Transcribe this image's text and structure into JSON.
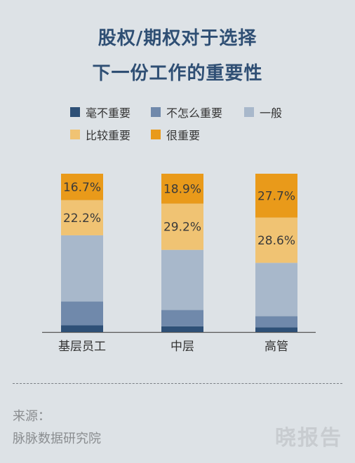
{
  "chart_data": {
    "type": "bar",
    "stacked": true,
    "title_line1": "股权/期权对于选择",
    "title_line2": "下一份工作的重要性",
    "categories": [
      "基层员工",
      "中层",
      "高管"
    ],
    "series": [
      {
        "name": "毫不重要",
        "color": "#2e5077",
        "values": [
          4.2,
          3.6,
          3.0
        ]
      },
      {
        "name": "不怎么重要",
        "color": "#7089ab",
        "values": [
          15.1,
          10.3,
          7.0
        ]
      },
      {
        "name": "一般",
        "color": "#a8b8cb",
        "values": [
          41.8,
          38.0,
          33.7
        ]
      },
      {
        "name": "比较重要",
        "color": "#f0c373",
        "values": [
          22.2,
          29.2,
          28.6
        ]
      },
      {
        "name": "很重要",
        "color": "#e99a1a",
        "values": [
          16.7,
          18.9,
          27.7
        ]
      }
    ],
    "data_labels": [
      {
        "series": 3,
        "category": 0,
        "text": "22.2%"
      },
      {
        "series": 4,
        "category": 0,
        "text": "16.7%"
      },
      {
        "series": 3,
        "category": 1,
        "text": "29.2%"
      },
      {
        "series": 4,
        "category": 1,
        "text": "18.9%"
      },
      {
        "series": 3,
        "category": 2,
        "text": "28.6%"
      },
      {
        "series": 4,
        "category": 2,
        "text": "27.7%"
      }
    ],
    "ylim": [
      0,
      100
    ],
    "legend_position": "top"
  },
  "source": {
    "label": "来源：",
    "value": "脉脉数据研究院"
  },
  "watermark": "晓报告"
}
